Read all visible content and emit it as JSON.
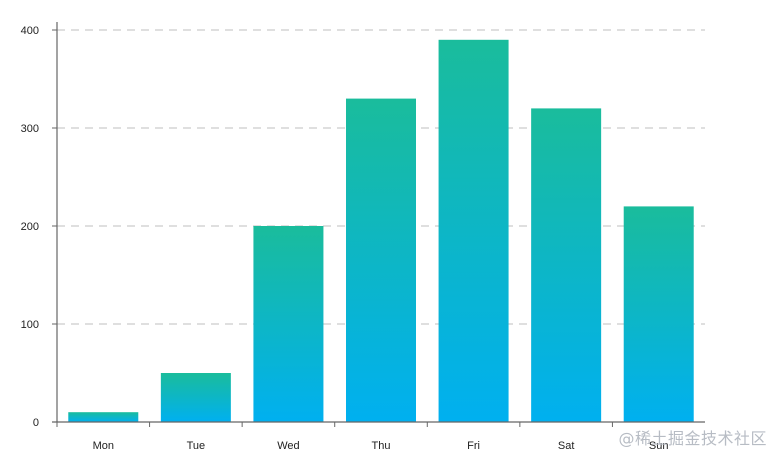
{
  "chart_data": {
    "type": "bar",
    "categories": [
      "Mon",
      "Tue",
      "Wed",
      "Thu",
      "Fri",
      "Sat",
      "Sun"
    ],
    "values": [
      10,
      50,
      200,
      330,
      390,
      320,
      220
    ],
    "yticks": [
      0,
      100,
      200,
      300,
      400
    ],
    "ylim": [
      0,
      400
    ],
    "grid": "dashed horizontal",
    "colors": {
      "bar_top": "#1abc9c",
      "bar_bottom": "#00b0f0",
      "grid": "#cccccc",
      "axis": "#666666",
      "text": "#222222"
    }
  },
  "watermark": "@稀土掘金技术社区"
}
